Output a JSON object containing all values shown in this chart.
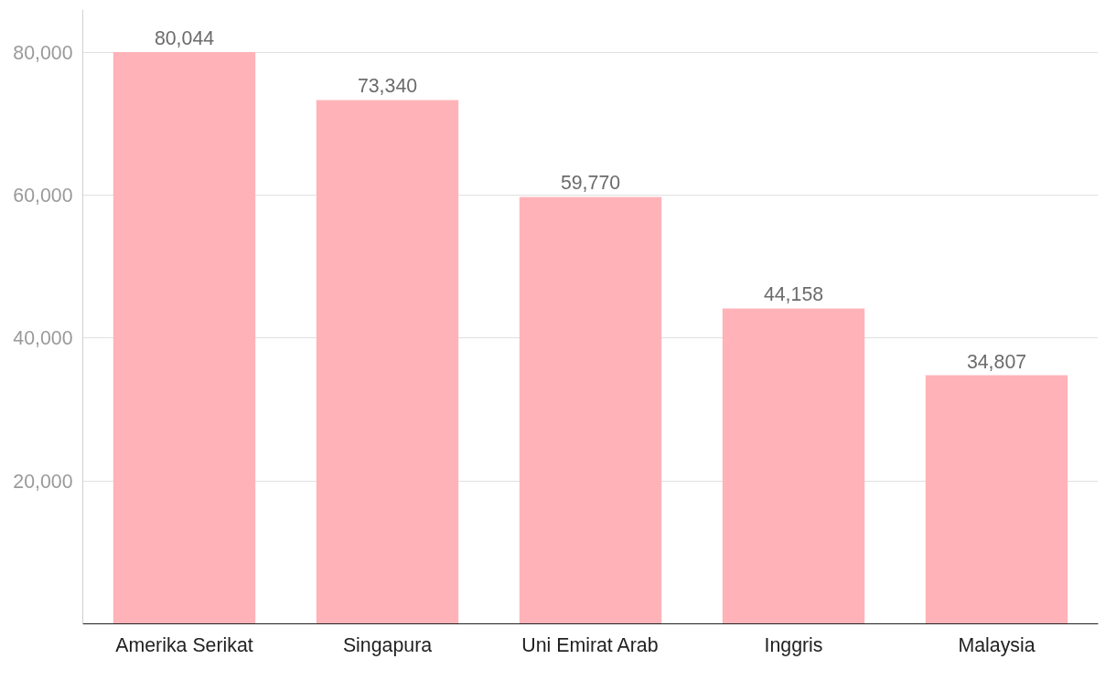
{
  "chart_data": {
    "type": "bar",
    "categories": [
      "Amerika Serikat",
      "Singapura",
      "Uni Emirat Arab",
      "Inggris",
      "Malaysia"
    ],
    "values": [
      80044,
      73340,
      59770,
      44158,
      34807
    ],
    "value_labels": [
      "80,044",
      "73,340",
      "59,770",
      "44,158",
      "34,807"
    ],
    "color": "#ffb3b8",
    "ylim": [
      0,
      86000
    ],
    "yticks": [
      {
        "value": 20000,
        "label": "20,000"
      },
      {
        "value": 40000,
        "label": "40,000"
      },
      {
        "value": 60000,
        "label": "60,000"
      },
      {
        "value": 80000,
        "label": "80,000"
      }
    ],
    "grid": "y"
  }
}
